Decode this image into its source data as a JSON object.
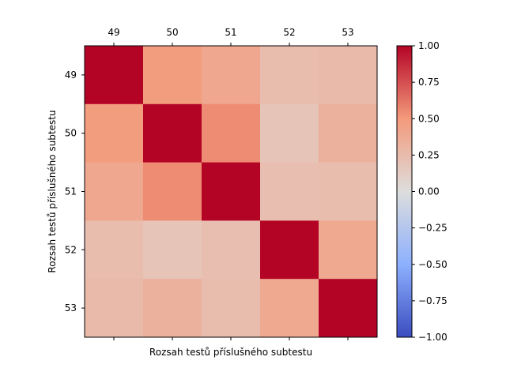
{
  "chart_data": {
    "type": "heatmap",
    "title": "",
    "xlabel": "Rozsah testů příslušného subtestu",
    "ylabel": "Rozsah testů příslušného subtestu",
    "categories": [
      "49",
      "50",
      "51",
      "52",
      "53"
    ],
    "x_tick_position": "top",
    "matrix": [
      [
        1.0,
        0.48,
        0.4,
        0.24,
        0.26
      ],
      [
        0.48,
        1.0,
        0.55,
        0.19,
        0.33
      ],
      [
        0.4,
        0.55,
        1.0,
        0.23,
        0.24
      ],
      [
        0.24,
        0.19,
        0.23,
        1.0,
        0.39
      ],
      [
        0.26,
        0.33,
        0.24,
        0.39,
        1.0
      ]
    ],
    "colormap": "coolwarm",
    "vmin": -1.0,
    "vmax": 1.0,
    "colorbar": {
      "ticks": [
        1.0,
        0.75,
        0.5,
        0.25,
        0.0,
        -0.25,
        -0.5,
        -0.75,
        -1.0
      ],
      "tick_labels": [
        "1.00",
        "0.75",
        "0.50",
        "0.25",
        "0.00",
        "−0.25",
        "−0.50",
        "−0.75",
        "−1.00"
      ]
    },
    "grid": false
  }
}
